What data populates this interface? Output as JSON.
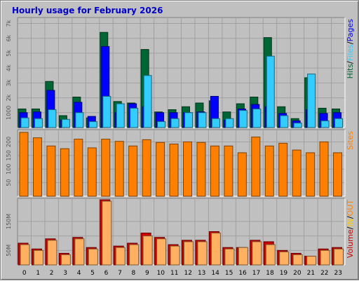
{
  "chart_data": {
    "title": "Hourly usage for February 2026",
    "type": "bar",
    "categories": [
      "0",
      "1",
      "2",
      "3",
      "4",
      "5",
      "6",
      "7",
      "8",
      "9",
      "10",
      "11",
      "12",
      "13",
      "14",
      "15",
      "16",
      "17",
      "18",
      "19",
      "20",
      "21",
      "22",
      "23"
    ],
    "colors": {
      "pages": "#0000ff",
      "files": "#33ccff",
      "hits": "#006633",
      "sites": "#ff8000",
      "volume": "#cc0000",
      "volume_bar": "#ffb060",
      "slash": "#000000",
      "panel": "#c0c0c0",
      "grid": "#a0a0a0"
    },
    "panels": [
      {
        "name": "hits",
        "yticks": [
          1000,
          2000,
          3000,
          4000,
          5000,
          6000,
          7000
        ],
        "ytick_labels": [
          "1000",
          "2k",
          "3k",
          "4k",
          "5k",
          "6k",
          "7k"
        ],
        "ylim": [
          0,
          7400
        ],
        "legend": [
          {
            "text": "Hits",
            "color": "#006633"
          },
          {
            "text": "/",
            "color": "#000000"
          },
          {
            "text": "Files",
            "color": "#33ccff"
          },
          {
            "text": "/",
            "color": "#000000"
          },
          {
            "text": "Pages",
            "color": "#0000ff"
          }
        ],
        "series": [
          {
            "name": "Hits",
            "values": [
              1250,
              1250,
              3100,
              800,
              2050,
              650,
              6400,
              1750,
              1650,
              5250,
              1050,
              1200,
              1400,
              1650,
              1800,
              1050,
              1600,
              2050,
              6050,
              1400,
              600,
              3350,
              1300,
              1250
            ]
          },
          {
            "name": "Files",
            "values": [
              650,
              600,
              1200,
              550,
              1000,
              400,
              2100,
              1600,
              1300,
              3500,
              400,
              600,
              1000,
              1000,
              600,
              600,
              1150,
              1250,
              4800,
              800,
              300,
              3600,
              450,
              600
            ]
          },
          {
            "name": "Pages",
            "values": [
              1000,
              1050,
              2500,
              500,
              1700,
              750,
              5450,
              1000,
              1600,
              1400,
              1000,
              1000,
              1000,
              1050,
              2100,
              500,
              1250,
              1550,
              1400,
              950,
              450,
              1200,
              950,
              1000
            ]
          }
        ]
      },
      {
        "name": "sites",
        "yticks": [
          50,
          100,
          150,
          200
        ],
        "ytick_labels": [
          "50",
          "100",
          "150",
          "200"
        ],
        "ylim": [
          0,
          245
        ],
        "legend": [
          {
            "text": "Sites",
            "color": "#ff8000"
          }
        ],
        "series": [
          {
            "name": "Sites",
            "values": [
              235,
              215,
              185,
              175,
              210,
              178,
              210,
              202,
              185,
              208,
              198,
              192,
              200,
              198,
              185,
              185,
              160,
              218,
              185,
              195,
              170,
              160,
              200,
              160
            ]
          }
        ]
      },
      {
        "name": "volume",
        "yticks": [
          50,
          100,
          150
        ],
        "ytick_labels": [
          "50M",
          "",
          "150M"
        ],
        "ylim": [
          0,
          230
        ],
        "legend": [
          {
            "text": "Volume",
            "color": "#cc0000"
          },
          {
            "text": "/",
            "color": "#000000"
          },
          {
            "text": "IN",
            "color": "#ffcc00"
          },
          {
            "text": "/",
            "color": "#000000"
          },
          {
            "text": "OUT",
            "color": "#ff8000"
          }
        ],
        "series": [
          {
            "name": "Volume",
            "values": [
              75,
              55,
              90,
              40,
              95,
              60,
              225,
              65,
              75,
              110,
              95,
              70,
              85,
              85,
              115,
              60,
              60,
              85,
              80,
              50,
              40,
              30,
              55,
              60
            ]
          },
          {
            "name": "OUT",
            "values": [
              70,
              50,
              85,
              35,
              90,
              55,
              220,
              60,
              70,
              100,
              90,
              65,
              80,
              80,
              110,
              55,
              60,
              80,
              70,
              45,
              35,
              30,
              50,
              55
            ]
          }
        ]
      }
    ]
  }
}
